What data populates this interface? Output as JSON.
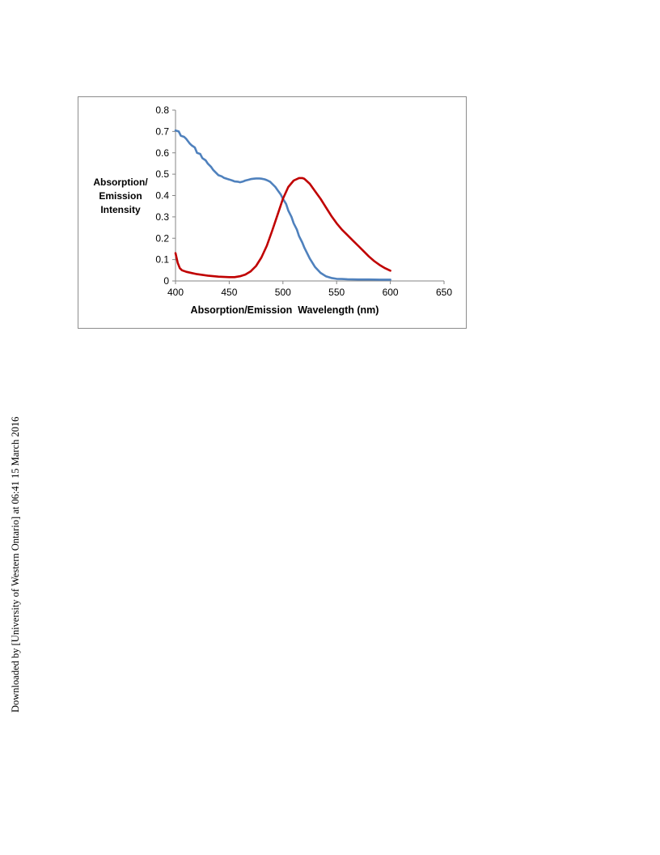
{
  "side_note": "Downloaded by [University of Western Ontario] at 06:41 15 March 2016",
  "chart_data": {
    "type": "line",
    "title": "",
    "xlabel": "Absorption/Emission  Wavelength (nm)",
    "ylabel_lines": [
      "Absorption/",
      "Emission",
      "Intensity"
    ],
    "xlim": [
      400,
      650
    ],
    "ylim": [
      0,
      0.8
    ],
    "x_ticks": [
      400,
      450,
      500,
      550,
      600,
      650
    ],
    "x_tick_labels": [
      "400",
      "450",
      "500",
      "550",
      "600",
      "650"
    ],
    "y_ticks": [
      0,
      0.1,
      0.2,
      0.3,
      0.4,
      0.5,
      0.6,
      0.7,
      0.8
    ],
    "y_tick_labels": [
      "0",
      "0.1",
      "0.2",
      "0.3",
      "0.4",
      "0.5",
      "0.6",
      "0.7",
      "0.8"
    ],
    "grid": false,
    "legend": "none",
    "series": [
      {
        "color": "#4f81bd",
        "x": [
          400,
          403,
          405,
          408,
          410,
          413,
          415,
          418,
          420,
          423,
          425,
          428,
          430,
          433,
          435,
          438,
          440,
          443,
          445,
          448,
          450,
          453,
          455,
          458,
          460,
          463,
          465,
          468,
          470,
          473,
          475,
          478,
          480,
          483,
          485,
          488,
          490,
          493,
          495,
          498,
          500,
          503,
          505,
          508,
          510,
          513,
          515,
          518,
          520,
          525,
          530,
          535,
          540,
          545,
          550,
          555,
          560,
          570,
          580,
          590,
          600
        ],
        "y": [
          0.705,
          0.7,
          0.68,
          0.675,
          0.665,
          0.645,
          0.635,
          0.625,
          0.6,
          0.595,
          0.575,
          0.565,
          0.55,
          0.535,
          0.52,
          0.505,
          0.495,
          0.49,
          0.483,
          0.478,
          0.475,
          0.47,
          0.466,
          0.465,
          0.462,
          0.466,
          0.47,
          0.474,
          0.477,
          0.479,
          0.48,
          0.48,
          0.479,
          0.476,
          0.472,
          0.465,
          0.455,
          0.44,
          0.425,
          0.405,
          0.385,
          0.36,
          0.33,
          0.3,
          0.27,
          0.24,
          0.21,
          0.18,
          0.155,
          0.105,
          0.065,
          0.038,
          0.022,
          0.014,
          0.01,
          0.009,
          0.008,
          0.007,
          0.007,
          0.006,
          0.006
        ]
      },
      {
        "color": "#c00000",
        "x": [
          400,
          402,
          404,
          406,
          410,
          415,
          420,
          430,
          440,
          450,
          455,
          460,
          465,
          470,
          475,
          480,
          485,
          490,
          495,
          500,
          505,
          510,
          515,
          518,
          520,
          525,
          530,
          535,
          540,
          545,
          550,
          555,
          560,
          565,
          570,
          575,
          580,
          585,
          590,
          595,
          600
        ],
        "y": [
          0.13,
          0.085,
          0.06,
          0.05,
          0.043,
          0.037,
          0.032,
          0.025,
          0.02,
          0.018,
          0.018,
          0.022,
          0.03,
          0.045,
          0.07,
          0.11,
          0.165,
          0.235,
          0.31,
          0.385,
          0.44,
          0.47,
          0.482,
          0.482,
          0.478,
          0.455,
          0.42,
          0.385,
          0.345,
          0.305,
          0.27,
          0.24,
          0.215,
          0.19,
          0.165,
          0.14,
          0.115,
          0.093,
          0.075,
          0.06,
          0.048
        ]
      }
    ]
  }
}
